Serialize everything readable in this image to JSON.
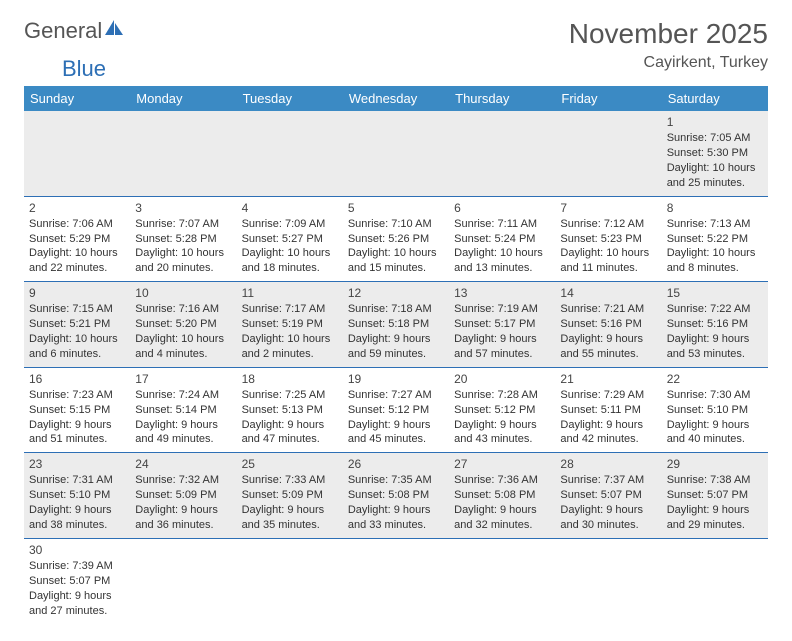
{
  "logo": {
    "part1": "General",
    "part2": "Blue"
  },
  "title": "November 2025",
  "location": "Cayirkent, Turkey",
  "colors": {
    "headerBar": "#3b8ac4",
    "rowGray": "#ececec",
    "rowBorder": "#2d6fb5",
    "text": "#333"
  },
  "weekdays": [
    "Sunday",
    "Monday",
    "Tuesday",
    "Wednesday",
    "Thursday",
    "Friday",
    "Saturday"
  ],
  "weeks": [
    {
      "shade": "gray",
      "days": [
        null,
        null,
        null,
        null,
        null,
        null,
        {
          "n": "1",
          "sunrise": "Sunrise: 7:05 AM",
          "sunset": "Sunset: 5:30 PM",
          "daylight": "Daylight: 10 hours and 25 minutes."
        }
      ]
    },
    {
      "shade": "white",
      "days": [
        {
          "n": "2",
          "sunrise": "Sunrise: 7:06 AM",
          "sunset": "Sunset: 5:29 PM",
          "daylight": "Daylight: 10 hours and 22 minutes."
        },
        {
          "n": "3",
          "sunrise": "Sunrise: 7:07 AM",
          "sunset": "Sunset: 5:28 PM",
          "daylight": "Daylight: 10 hours and 20 minutes."
        },
        {
          "n": "4",
          "sunrise": "Sunrise: 7:09 AM",
          "sunset": "Sunset: 5:27 PM",
          "daylight": "Daylight: 10 hours and 18 minutes."
        },
        {
          "n": "5",
          "sunrise": "Sunrise: 7:10 AM",
          "sunset": "Sunset: 5:26 PM",
          "daylight": "Daylight: 10 hours and 15 minutes."
        },
        {
          "n": "6",
          "sunrise": "Sunrise: 7:11 AM",
          "sunset": "Sunset: 5:24 PM",
          "daylight": "Daylight: 10 hours and 13 minutes."
        },
        {
          "n": "7",
          "sunrise": "Sunrise: 7:12 AM",
          "sunset": "Sunset: 5:23 PM",
          "daylight": "Daylight: 10 hours and 11 minutes."
        },
        {
          "n": "8",
          "sunrise": "Sunrise: 7:13 AM",
          "sunset": "Sunset: 5:22 PM",
          "daylight": "Daylight: 10 hours and 8 minutes."
        }
      ]
    },
    {
      "shade": "gray",
      "days": [
        {
          "n": "9",
          "sunrise": "Sunrise: 7:15 AM",
          "sunset": "Sunset: 5:21 PM",
          "daylight": "Daylight: 10 hours and 6 minutes."
        },
        {
          "n": "10",
          "sunrise": "Sunrise: 7:16 AM",
          "sunset": "Sunset: 5:20 PM",
          "daylight": "Daylight: 10 hours and 4 minutes."
        },
        {
          "n": "11",
          "sunrise": "Sunrise: 7:17 AM",
          "sunset": "Sunset: 5:19 PM",
          "daylight": "Daylight: 10 hours and 2 minutes."
        },
        {
          "n": "12",
          "sunrise": "Sunrise: 7:18 AM",
          "sunset": "Sunset: 5:18 PM",
          "daylight": "Daylight: 9 hours and 59 minutes."
        },
        {
          "n": "13",
          "sunrise": "Sunrise: 7:19 AM",
          "sunset": "Sunset: 5:17 PM",
          "daylight": "Daylight: 9 hours and 57 minutes."
        },
        {
          "n": "14",
          "sunrise": "Sunrise: 7:21 AM",
          "sunset": "Sunset: 5:16 PM",
          "daylight": "Daylight: 9 hours and 55 minutes."
        },
        {
          "n": "15",
          "sunrise": "Sunrise: 7:22 AM",
          "sunset": "Sunset: 5:16 PM",
          "daylight": "Daylight: 9 hours and 53 minutes."
        }
      ]
    },
    {
      "shade": "white",
      "days": [
        {
          "n": "16",
          "sunrise": "Sunrise: 7:23 AM",
          "sunset": "Sunset: 5:15 PM",
          "daylight": "Daylight: 9 hours and 51 minutes."
        },
        {
          "n": "17",
          "sunrise": "Sunrise: 7:24 AM",
          "sunset": "Sunset: 5:14 PM",
          "daylight": "Daylight: 9 hours and 49 minutes."
        },
        {
          "n": "18",
          "sunrise": "Sunrise: 7:25 AM",
          "sunset": "Sunset: 5:13 PM",
          "daylight": "Daylight: 9 hours and 47 minutes."
        },
        {
          "n": "19",
          "sunrise": "Sunrise: 7:27 AM",
          "sunset": "Sunset: 5:12 PM",
          "daylight": "Daylight: 9 hours and 45 minutes."
        },
        {
          "n": "20",
          "sunrise": "Sunrise: 7:28 AM",
          "sunset": "Sunset: 5:12 PM",
          "daylight": "Daylight: 9 hours and 43 minutes."
        },
        {
          "n": "21",
          "sunrise": "Sunrise: 7:29 AM",
          "sunset": "Sunset: 5:11 PM",
          "daylight": "Daylight: 9 hours and 42 minutes."
        },
        {
          "n": "22",
          "sunrise": "Sunrise: 7:30 AM",
          "sunset": "Sunset: 5:10 PM",
          "daylight": "Daylight: 9 hours and 40 minutes."
        }
      ]
    },
    {
      "shade": "gray",
      "days": [
        {
          "n": "23",
          "sunrise": "Sunrise: 7:31 AM",
          "sunset": "Sunset: 5:10 PM",
          "daylight": "Daylight: 9 hours and 38 minutes."
        },
        {
          "n": "24",
          "sunrise": "Sunrise: 7:32 AM",
          "sunset": "Sunset: 5:09 PM",
          "daylight": "Daylight: 9 hours and 36 minutes."
        },
        {
          "n": "25",
          "sunrise": "Sunrise: 7:33 AM",
          "sunset": "Sunset: 5:09 PM",
          "daylight": "Daylight: 9 hours and 35 minutes."
        },
        {
          "n": "26",
          "sunrise": "Sunrise: 7:35 AM",
          "sunset": "Sunset: 5:08 PM",
          "daylight": "Daylight: 9 hours and 33 minutes."
        },
        {
          "n": "27",
          "sunrise": "Sunrise: 7:36 AM",
          "sunset": "Sunset: 5:08 PM",
          "daylight": "Daylight: 9 hours and 32 minutes."
        },
        {
          "n": "28",
          "sunrise": "Sunrise: 7:37 AM",
          "sunset": "Sunset: 5:07 PM",
          "daylight": "Daylight: 9 hours and 30 minutes."
        },
        {
          "n": "29",
          "sunrise": "Sunrise: 7:38 AM",
          "sunset": "Sunset: 5:07 PM",
          "daylight": "Daylight: 9 hours and 29 minutes."
        }
      ]
    },
    {
      "shade": "white",
      "days": [
        {
          "n": "30",
          "sunrise": "Sunrise: 7:39 AM",
          "sunset": "Sunset: 5:07 PM",
          "daylight": "Daylight: 9 hours and 27 minutes."
        },
        null,
        null,
        null,
        null,
        null,
        null
      ]
    }
  ]
}
